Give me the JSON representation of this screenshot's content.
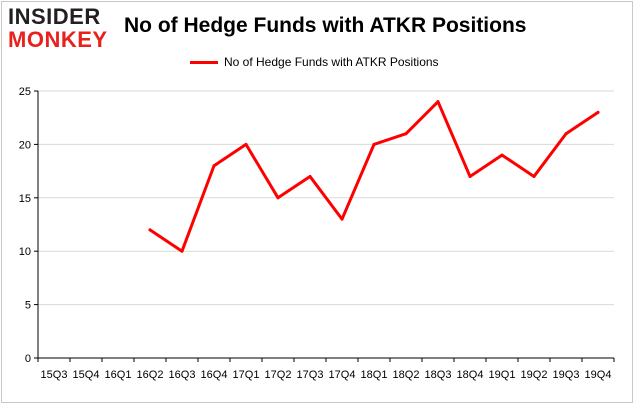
{
  "brand": {
    "logo_top": "INSIDER",
    "logo_bottom": "MONKEY",
    "accent_color": "#ff0000"
  },
  "chart_data": {
    "type": "line",
    "title": "No of Hedge Funds with ATKR Positions",
    "xlabel": "",
    "ylabel": "",
    "categories": [
      "15Q3",
      "15Q4",
      "16Q1",
      "16Q2",
      "16Q3",
      "16Q4",
      "17Q1",
      "17Q2",
      "17Q3",
      "17Q4",
      "18Q1",
      "18Q2",
      "18Q3",
      "18Q4",
      "19Q1",
      "19Q2",
      "19Q3",
      "19Q4"
    ],
    "series": [
      {
        "name": "No of Hedge Funds with ATKR Positions",
        "color": "#ff0000",
        "values": [
          null,
          null,
          null,
          12,
          10,
          18,
          20,
          15,
          17,
          13,
          20,
          21,
          24,
          17,
          19,
          17,
          21,
          23
        ]
      }
    ],
    "yticks": [
      0,
      5,
      10,
      15,
      20,
      25
    ],
    "ylim": [
      0,
      25
    ],
    "grid": "horizontal",
    "legend": "top-center"
  }
}
